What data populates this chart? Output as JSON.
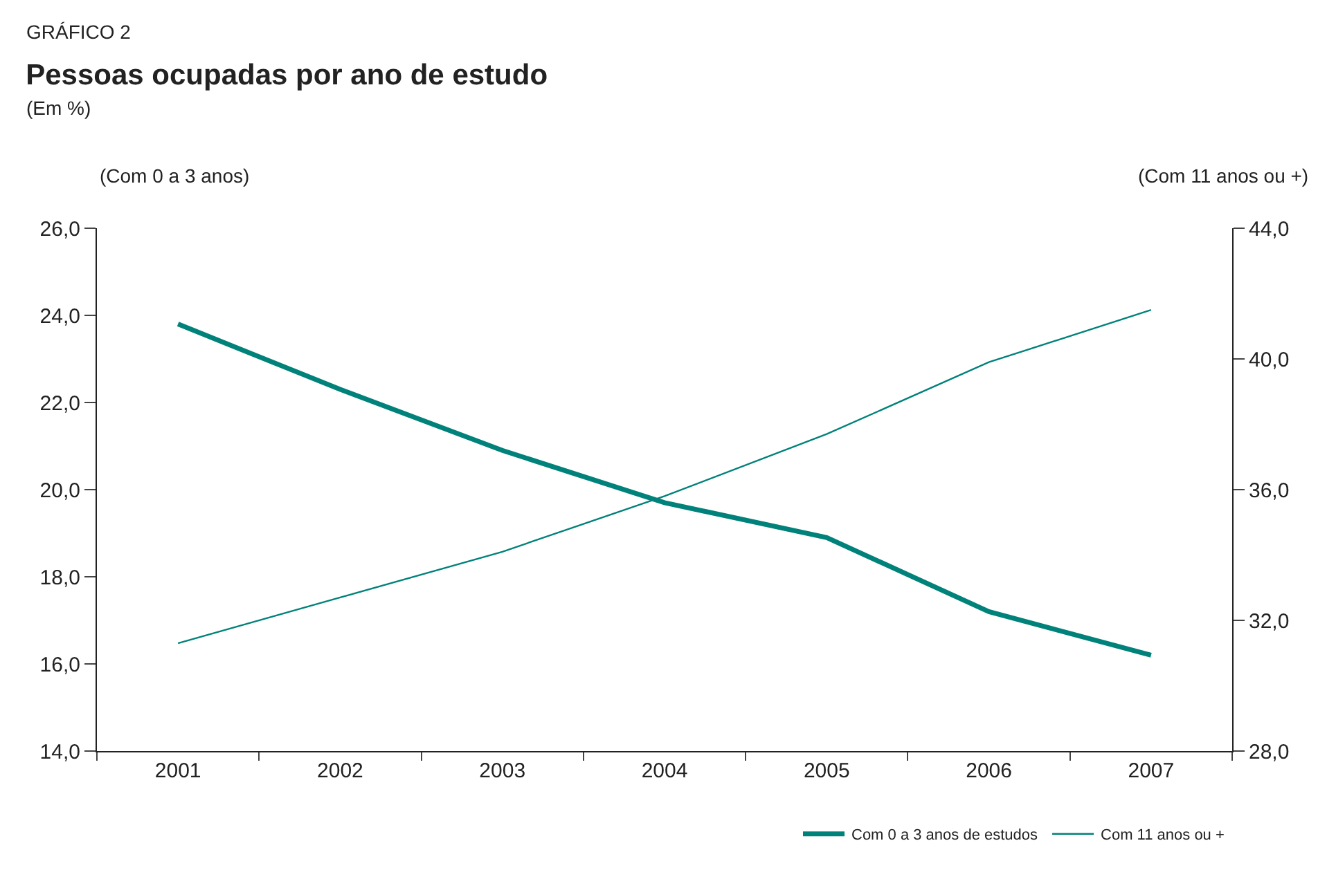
{
  "chart_data": {
    "type": "line",
    "title": "Pessoas ocupadas por ano de estudo",
    "subtitle": "(Em %)",
    "annotations": [
      "GRÁFICO 2"
    ],
    "ylabel": "(Com 0 a 3 anos)",
    "y2label": "(Com 11 anos ou +)",
    "categories": [
      "2001",
      "2002",
      "2003",
      "2004",
      "2005",
      "2006",
      "2007"
    ],
    "series": [
      {
        "name": "Com 0 a 3 anos de estudos",
        "color": "#00827a",
        "values": [
          23.8,
          22.3,
          20.9,
          19.7,
          18.9,
          17.2,
          16.2
        ]
      },
      {
        "name": "Com 11 anos ou +",
        "color": "#00827a",
        "axis": "y2",
        "values": [
          31.3,
          32.7,
          34.1,
          35.8,
          37.7,
          39.9,
          41.5
        ]
      }
    ],
    "ylim": [
      14,
      26
    ],
    "yticks": [
      {
        "value": 14,
        "label": "14,0"
      },
      {
        "value": 16,
        "label": "16,0"
      },
      {
        "value": 18,
        "label": "18,0"
      },
      {
        "value": 20,
        "label": "20,0"
      },
      {
        "value": 22,
        "label": "22,0"
      },
      {
        "value": 24,
        "label": "24,0"
      },
      {
        "value": 26,
        "label": "26,0"
      }
    ],
    "y2lim": [
      28,
      44
    ],
    "y2ticks": [
      {
        "value": 28,
        "label": "28,0"
      },
      {
        "value": 32,
        "label": "32,0"
      },
      {
        "value": 36,
        "label": "36,0"
      },
      {
        "value": 40,
        "label": "40,0"
      },
      {
        "value": 44,
        "label": "44,0"
      }
    ],
    "grid": false,
    "legend": "bottom right",
    "marker": "none",
    "line_style": "solid"
  }
}
